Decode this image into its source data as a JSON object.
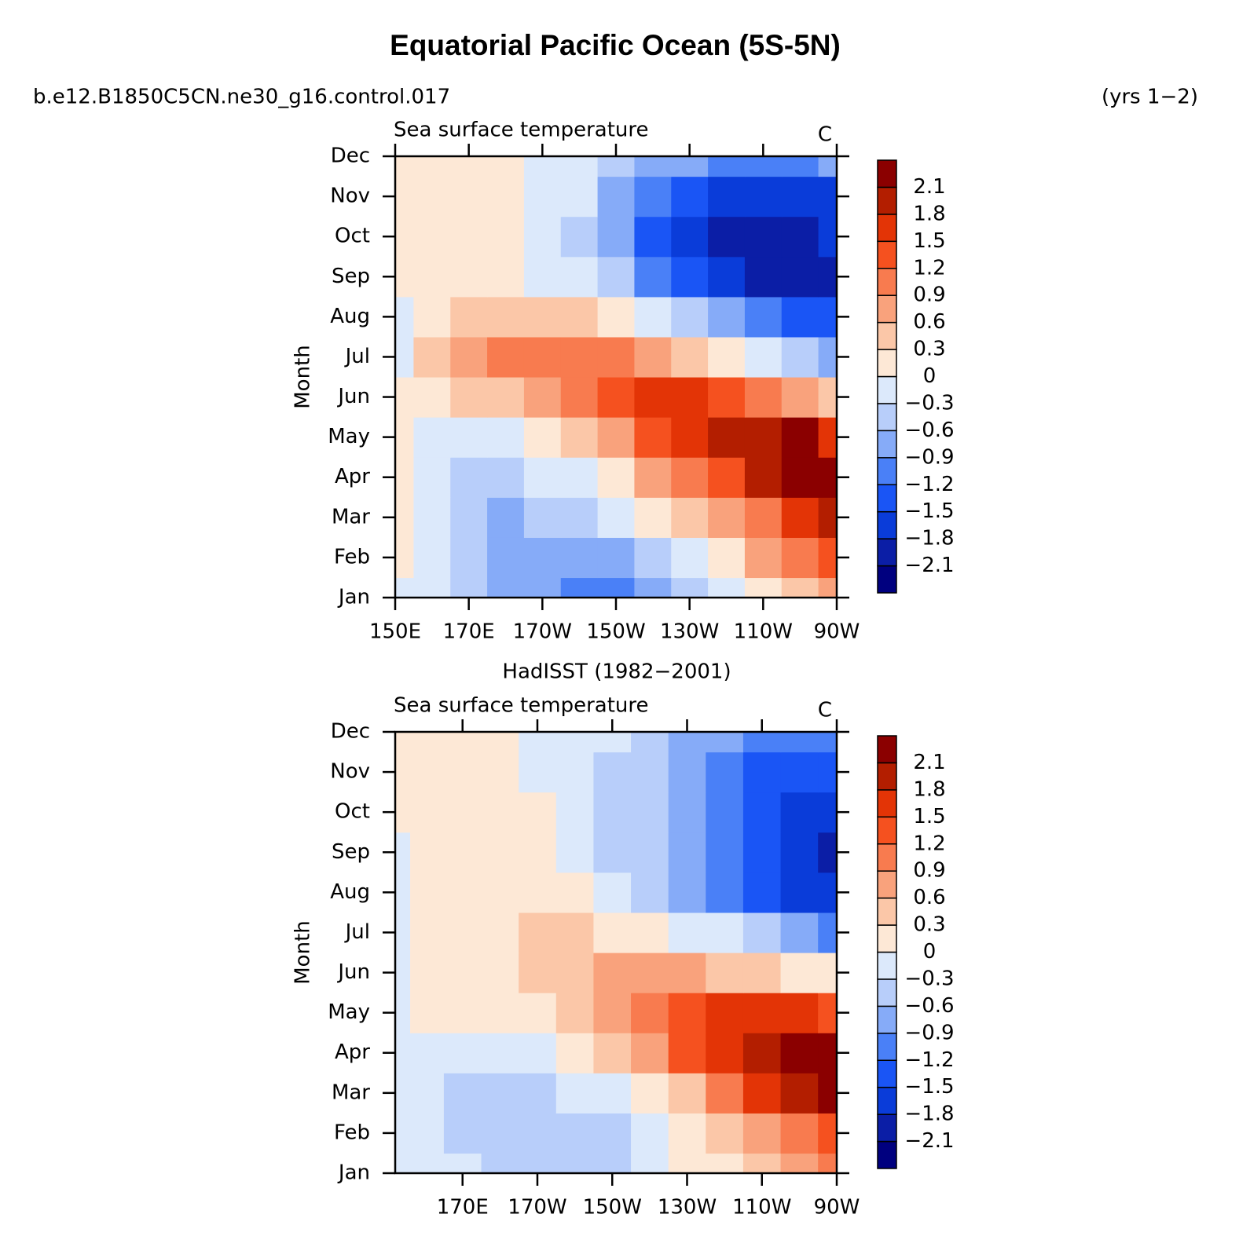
{
  "title": "Equatorial Pacific Ocean (5S-5N)",
  "case": "b.e12.B1850C5CN.ne30_g16.control.017",
  "years": "(yrs 1−2)",
  "chart_data": [
    {
      "type": "contour",
      "left_string": "Sea surface temperature",
      "right_string": "C",
      "y_label": "Month",
      "categories": [
        "Jan",
        "Feb",
        "Mar",
        "Apr",
        "May",
        "Jun",
        "Jul",
        "Aug",
        "Sep",
        "Oct",
        "Nov",
        "Dec"
      ],
      "x": [
        150,
        160,
        170,
        180,
        190,
        200,
        210,
        220,
        230,
        240,
        250,
        260,
        270
      ],
      "xlim": [
        150,
        270
      ],
      "xticks": [
        {
          "value": 150,
          "label": "150E"
        },
        {
          "value": 170,
          "label": "170E"
        },
        {
          "value": 190,
          "label": "170W"
        },
        {
          "value": 210,
          "label": "150W"
        },
        {
          "value": 230,
          "label": "130W"
        },
        {
          "value": 250,
          "label": "110W"
        },
        {
          "value": 270,
          "label": "90W"
        }
      ],
      "z": [
        [
          -0.1,
          -0.2,
          -0.4,
          -0.7,
          -0.8,
          -1.0,
          -1.0,
          -0.8,
          -0.5,
          -0.2,
          0.1,
          0.4,
          0.7
        ],
        [
          0.0,
          -0.2,
          -0.5,
          -0.7,
          -0.8,
          -0.8,
          -0.7,
          -0.5,
          -0.2,
          0.2,
          0.6,
          0.9,
          1.3
        ],
        [
          0.1,
          -0.2,
          -0.5,
          -0.7,
          -0.6,
          -0.5,
          -0.3,
          0.0,
          0.3,
          0.7,
          1.1,
          1.5,
          1.8
        ],
        [
          0.1,
          -0.2,
          -0.4,
          -0.4,
          -0.3,
          -0.1,
          0.2,
          0.6,
          1.0,
          1.4,
          1.8,
          2.2,
          2.2
        ],
        [
          0.1,
          -0.1,
          -0.2,
          -0.1,
          0.1,
          0.4,
          0.8,
          1.2,
          1.5,
          1.9,
          2.0,
          2.2,
          1.7
        ],
        [
          0.1,
          0.2,
          0.3,
          0.5,
          0.8,
          1.1,
          1.4,
          1.6,
          1.5,
          1.3,
          1.1,
          0.8,
          0.3
        ],
        [
          -0.1,
          0.3,
          0.6,
          0.9,
          1.0,
          1.0,
          0.9,
          0.7,
          0.5,
          0.2,
          -0.2,
          -0.5,
          -0.8
        ],
        [
          -0.2,
          0.2,
          0.4,
          0.5,
          0.4,
          0.3,
          0.1,
          -0.2,
          -0.4,
          -0.7,
          -1.0,
          -1.3,
          -1.5
        ],
        [
          0.1,
          0.1,
          0.1,
          0.0,
          -0.1,
          -0.3,
          -0.6,
          -1.0,
          -1.4,
          -1.7,
          -1.9,
          -2.0,
          -2.0
        ],
        [
          0.1,
          0.1,
          0.1,
          0.1,
          -0.2,
          -0.4,
          -0.9,
          -1.3,
          -1.7,
          -2.0,
          -2.0,
          -1.9,
          -1.8
        ],
        [
          0.1,
          0.1,
          0.1,
          0.1,
          -0.2,
          -0.3,
          -0.7,
          -1.0,
          -1.3,
          -1.6,
          -1.8,
          -1.7,
          -1.6
        ],
        [
          0.1,
          0.1,
          0.1,
          0.0,
          -0.3,
          -0.3,
          -0.6,
          -0.7,
          -0.8,
          -1.0,
          -1.2,
          -1.1,
          -0.8
        ]
      ],
      "levels": [
        {
          "value": -2.1,
          "label": "−2.1"
        },
        {
          "value": -1.8,
          "label": "−1.8"
        },
        {
          "value": -1.5,
          "label": "−1.5"
        },
        {
          "value": -1.2,
          "label": "−1.2"
        },
        {
          "value": -0.9,
          "label": "−0.9"
        },
        {
          "value": -0.6,
          "label": "−0.6"
        },
        {
          "value": -0.3,
          "label": "−0.3"
        },
        0,
        0.3,
        0.6,
        0.9,
        1.2,
        1.5,
        1.8,
        2.1
      ],
      "colors": [
        "#00007f",
        "#0b1ea6",
        "#0a3cd9",
        "#1a55f5",
        "#4a80f7",
        "#86abf8",
        "#b8cefa",
        "#dce9fb",
        "#fde8d6",
        "#fbc7a8",
        "#f9a27c",
        "#f87b4f",
        "#f5511f",
        "#e33406",
        "#b31e00",
        "#8b0000"
      ]
    },
    {
      "type": "contour",
      "title": "HadISST (1982−2001)",
      "left_string": "Sea surface temperature",
      "right_string": "C",
      "y_label": "Month",
      "categories": [
        "Jan",
        "Feb",
        "Mar",
        "Apr",
        "May",
        "Jun",
        "Jul",
        "Aug",
        "Sep",
        "Oct",
        "Nov",
        "Dec"
      ],
      "x": [
        152,
        160,
        170,
        180,
        190,
        200,
        210,
        220,
        230,
        240,
        250,
        260,
        270
      ],
      "xlim": [
        152,
        270
      ],
      "xticks": [
        {
          "value": 170,
          "label": "170E"
        },
        {
          "value": 190,
          "label": "170W"
        },
        {
          "value": 210,
          "label": "150W"
        },
        {
          "value": 230,
          "label": "130W"
        },
        {
          "value": 250,
          "label": "110W"
        },
        {
          "value": 270,
          "label": "90W"
        }
      ],
      "z": [
        [
          -0.1,
          -0.1,
          -0.3,
          -0.5,
          -0.5,
          -0.5,
          -0.4,
          -0.2,
          0.0,
          0.2,
          0.4,
          0.7,
          0.9
        ],
        [
          -0.1,
          -0.2,
          -0.4,
          -0.5,
          -0.5,
          -0.5,
          -0.4,
          -0.2,
          0.1,
          0.4,
          0.8,
          1.1,
          1.4
        ],
        [
          -0.1,
          -0.2,
          -0.4,
          -0.5,
          -0.4,
          -0.3,
          -0.1,
          0.2,
          0.5,
          1.0,
          1.5,
          2.0,
          2.3
        ],
        [
          -0.1,
          -0.1,
          -0.2,
          -0.2,
          -0.1,
          0.1,
          0.4,
          0.8,
          1.2,
          1.6,
          2.0,
          2.3,
          2.3
        ],
        [
          -0.1,
          0.0,
          0.0,
          0.1,
          0.2,
          0.4,
          0.7,
          1.0,
          1.3,
          1.5,
          1.6,
          1.5,
          1.3
        ],
        [
          -0.1,
          0.1,
          0.1,
          0.2,
          0.4,
          0.5,
          0.6,
          0.7,
          0.6,
          0.5,
          0.4,
          0.2,
          0.0
        ],
        [
          -0.1,
          0.1,
          0.1,
          0.2,
          0.3,
          0.3,
          0.2,
          0.1,
          -0.1,
          -0.3,
          -0.5,
          -0.8,
          -1.0
        ],
        [
          -0.1,
          0.1,
          0.1,
          0.1,
          0.1,
          0.0,
          -0.3,
          -0.5,
          -0.8,
          -1.1,
          -1.3,
          -1.6,
          -1.8
        ],
        [
          -0.1,
          0.1,
          0.2,
          0.1,
          0.1,
          -0.1,
          -0.4,
          -0.6,
          -0.9,
          -1.2,
          -1.5,
          -1.8,
          -1.9
        ],
        [
          0.1,
          0.1,
          0.1,
          0.1,
          0.0,
          -0.2,
          -0.4,
          -0.6,
          -0.9,
          -1.2,
          -1.5,
          -1.7,
          -1.8
        ],
        [
          0.1,
          0.1,
          0.1,
          0.1,
          -0.1,
          -0.2,
          -0.4,
          -0.5,
          -0.8,
          -1.1,
          -1.3,
          -1.4,
          -1.4
        ],
        [
          0.1,
          0.1,
          0.1,
          0.1,
          -0.1,
          -0.2,
          -0.3,
          -0.4,
          -0.7,
          -0.9,
          -1.0,
          -1.1,
          -1.1
        ]
      ],
      "levels": [
        {
          "value": -2.1,
          "label": "−2.1"
        },
        {
          "value": -1.8,
          "label": "−1.8"
        },
        {
          "value": -1.5,
          "label": "−1.5"
        },
        {
          "value": -1.2,
          "label": "−1.2"
        },
        {
          "value": -0.9,
          "label": "−0.9"
        },
        {
          "value": -0.6,
          "label": "−0.6"
        },
        {
          "value": -0.3,
          "label": "−0.3"
        },
        0,
        0.3,
        0.6,
        0.9,
        1.2,
        1.5,
        1.8,
        2.1
      ],
      "colors": [
        "#00007f",
        "#0b1ea6",
        "#0a3cd9",
        "#1a55f5",
        "#4a80f7",
        "#86abf8",
        "#b8cefa",
        "#dce9fb",
        "#fde8d6",
        "#fbc7a8",
        "#f9a27c",
        "#f87b4f",
        "#f5511f",
        "#e33406",
        "#b31e00",
        "#8b0000"
      ]
    }
  ]
}
